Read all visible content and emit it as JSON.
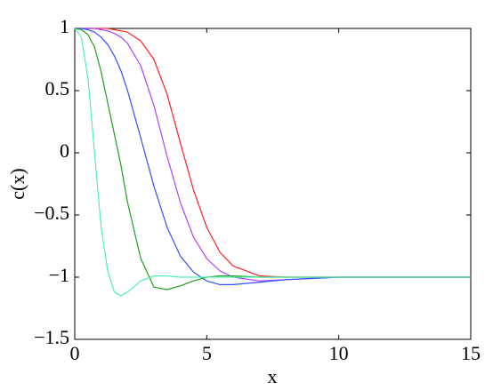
{
  "chart_data": {
    "type": "line",
    "xlabel": "x",
    "ylabel": "c(x)",
    "x": [
      0,
      0.25,
      0.5,
      0.75,
      1,
      1.25,
      1.5,
      1.75,
      2,
      2.5,
      3,
      3.5,
      4,
      4.5,
      5,
      5.5,
      6,
      7,
      8,
      9,
      10,
      12,
      15
    ],
    "series": [
      {
        "color": "#ff2020",
        "values": [
          1,
          1,
          1,
          1,
          1,
          1,
          0.99,
          0.98,
          0.97,
          0.9,
          0.75,
          0.47,
          0.08,
          -0.3,
          -0.6,
          -0.8,
          -0.91,
          -0.99,
          -1.0,
          -1.0,
          -1.0,
          -1.0,
          -1.0
        ]
      },
      {
        "color": "#b040ff",
        "values": [
          1,
          1,
          1,
          1,
          0.99,
          0.98,
          0.96,
          0.93,
          0.88,
          0.7,
          0.38,
          -0.03,
          -0.4,
          -0.68,
          -0.85,
          -0.95,
          -1.0,
          -1.03,
          -1.02,
          -1.01,
          -1.0,
          -1.0,
          -1.0
        ]
      },
      {
        "color": "#3050ff",
        "values": [
          1,
          1,
          0.99,
          0.97,
          0.93,
          0.87,
          0.78,
          0.66,
          0.5,
          0.12,
          -0.27,
          -0.6,
          -0.83,
          -0.96,
          -1.03,
          -1.06,
          -1.06,
          -1.04,
          -1.02,
          -1.01,
          -1.0,
          -1.0,
          -1.0
        ]
      },
      {
        "color": "#20a020",
        "values": [
          1,
          0.99,
          0.95,
          0.85,
          0.65,
          0.4,
          0.15,
          -0.1,
          -0.4,
          -0.85,
          -1.08,
          -1.1,
          -1.07,
          -1.03,
          -1.0,
          -0.99,
          -0.99,
          -1.0,
          -1.0,
          -1.0,
          -1.0,
          -1.0,
          -1.0
        ]
      },
      {
        "color": "#50f0b0",
        "values": [
          1,
          0.93,
          0.6,
          0.0,
          -0.6,
          -0.95,
          -1.12,
          -1.15,
          -1.12,
          -1.03,
          -0.99,
          -0.99,
          -1.0,
          -1.0,
          -1.0,
          -1.0,
          -1.0,
          -1.0,
          -1.0,
          -1.0,
          -1.0,
          -1.0,
          -1.0
        ]
      }
    ],
    "xlim": [
      0,
      15
    ],
    "xticks": [
      0,
      5,
      10,
      15
    ],
    "ylim": [
      -1.5,
      1
    ],
    "yticks": [
      {
        "value": -1.5,
        "label": "−1.5"
      },
      {
        "value": -1,
        "label": "−1"
      },
      {
        "value": -0.5,
        "label": "−0.5"
      },
      0,
      0.5,
      1
    ]
  }
}
